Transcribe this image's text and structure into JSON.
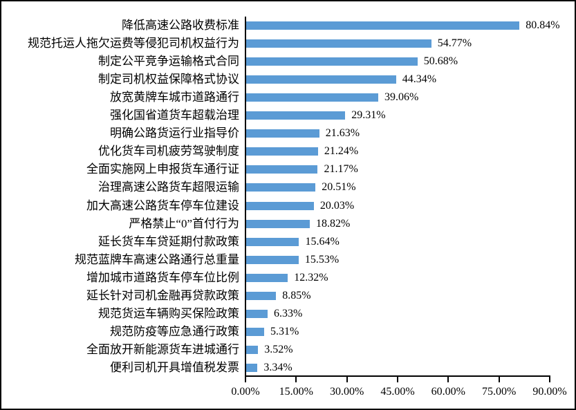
{
  "chart_data": {
    "type": "bar",
    "orientation": "horizontal",
    "title": "",
    "xlabel": "",
    "ylabel": "",
    "legend_position": "none",
    "grid": "off",
    "bar_color": "#5B9BD5",
    "axis_color": "#000000",
    "xlim": [
      0,
      90
    ],
    "x_tick_step": 15,
    "x_tick_labels": [
      "0.00%",
      "15.00%",
      "30.00%",
      "45.00%",
      "60.00%",
      "75.00%",
      "90.00%"
    ],
    "categories": [
      "降低高速公路收费标准",
      "规范托运人拖欠运费等侵犯司机权益行为",
      "制定公平竞争运输格式合同",
      "制定司机权益保障格式协议",
      "放宽黄牌车城市道路通行",
      "强化国省道货车超载治理",
      "明确公路货运行业指导价",
      "优化货车司机疲劳驾驶制度",
      "全面实施网上申报货车通行证",
      "治理高速公路货车超限运输",
      "加大高速公路货车停车位建设",
      "严格禁止“0”首付行为",
      "延长货车车贷延期付款政策",
      "规范蓝牌车高速公路通行总重量",
      "增加城市道路货车停车位比例",
      "延长针对司机金融再贷款政策",
      "规范货运车辆购买保险政策",
      "规范防疫等应急通行政策",
      "全面放开新能源货车进城通行",
      "便利司机开具增值税发票"
    ],
    "values": [
      80.84,
      54.77,
      50.68,
      44.34,
      39.06,
      29.31,
      21.63,
      21.24,
      21.17,
      20.51,
      20.03,
      18.82,
      15.64,
      15.53,
      12.32,
      8.85,
      6.33,
      5.31,
      3.52,
      3.34
    ],
    "value_labels": [
      "80.84%",
      "54.77%",
      "50.68%",
      "44.34%",
      "39.06%",
      "29.31%",
      "21.63%",
      "21.24%",
      "21.17%",
      "20.51%",
      "20.03%",
      "18.82%",
      "15.64%",
      "15.53%",
      "12.32%",
      "8.85%",
      "6.33%",
      "5.31%",
      "3.52%",
      "3.34%"
    ]
  }
}
